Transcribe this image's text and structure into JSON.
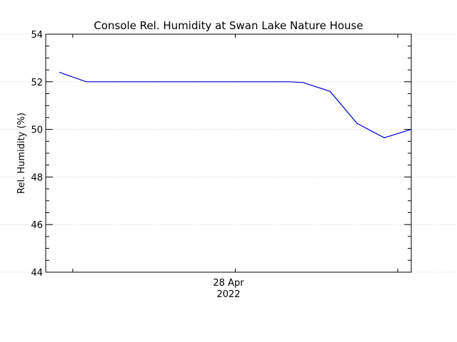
{
  "chart_data": {
    "type": "line",
    "title": "Console Rel. Humidity at Swan Lake Nature House",
    "xlabel": "",
    "ylabel": "Rel. Humidity (%)",
    "x_tick_label": {
      "line1": "28 Apr",
      "line2": "2022"
    },
    "ylim": [
      44,
      54
    ],
    "yticks": [
      44,
      46,
      48,
      50,
      52,
      54
    ],
    "grid": "dotted horizontal lines at major y ticks",
    "line_color": "#0000cc",
    "series": [
      {
        "x_hours": [
          -0.5,
          0.5,
          2,
          4,
          6,
          8,
          8.5,
          9.5,
          10.5,
          11.5,
          12.5
        ],
        "values": [
          52.4,
          52.0,
          52.0,
          52.0,
          52.0,
          52.0,
          51.97,
          51.6,
          50.25,
          49.65,
          50.0
        ]
      }
    ],
    "x_start_hour": -1,
    "x_end_hour": 12.5,
    "x_tick_hours": [
      0,
      6,
      12
    ]
  }
}
